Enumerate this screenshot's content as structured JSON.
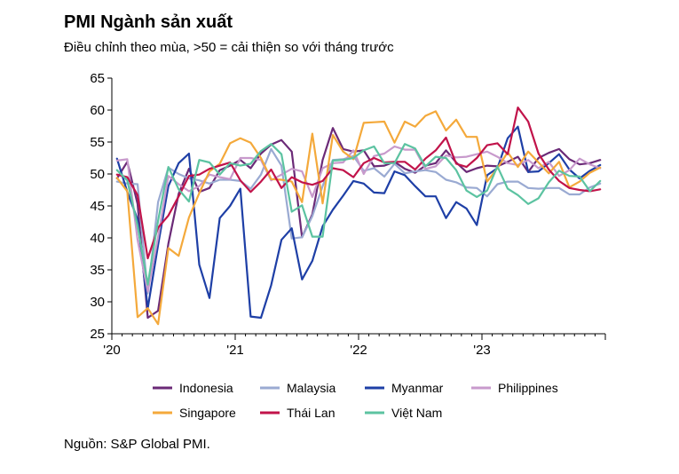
{
  "title": "PMI Ngành sản xuất",
  "subtitle": "Điều chỉnh theo mùa, >50 = cải thiện so với tháng trước",
  "source": "Nguồn: S&P Global PMI.",
  "chart_data": {
    "type": "line",
    "title": "PMI Ngành sản xuất",
    "subtitle": "Điều chỉnh theo mùa, >50 = cải thiện so với tháng trước",
    "ylim": [
      25,
      65
    ],
    "yticks": [
      25,
      30,
      35,
      40,
      45,
      50,
      55,
      60,
      65
    ],
    "xticks": [
      {
        "label": "'20",
        "month": "2020-01"
      },
      {
        "label": "'21",
        "month": "2021-01"
      },
      {
        "label": "'22",
        "month": "2022-01"
      },
      {
        "label": "'23",
        "month": "2023-01"
      }
    ],
    "x": [
      "2020-01",
      "2020-02",
      "2020-03",
      "2020-04",
      "2020-05",
      "2020-06",
      "2020-07",
      "2020-08",
      "2020-09",
      "2020-10",
      "2020-11",
      "2020-12",
      "2021-01",
      "2021-02",
      "2021-03",
      "2021-04",
      "2021-05",
      "2021-06",
      "2021-07",
      "2021-08",
      "2021-09",
      "2021-10",
      "2021-11",
      "2021-12",
      "2022-01",
      "2022-02",
      "2022-03",
      "2022-04",
      "2022-05",
      "2022-06",
      "2022-07",
      "2022-08",
      "2022-09",
      "2022-10",
      "2022-11",
      "2022-12",
      "2023-01",
      "2023-02",
      "2023-03",
      "2023-04",
      "2023-05",
      "2023-06",
      "2023-07",
      "2023-08",
      "2023-09",
      "2023-10",
      "2023-11",
      "2023-12"
    ],
    "grid": false,
    "legend_position": "bottom",
    "series": [
      {
        "name": "Indonesia",
        "color": "#6b2a77",
        "values": [
          49.3,
          51.9,
          45.3,
          27.5,
          28.6,
          39.1,
          46.9,
          50.8,
          47.2,
          47.8,
          50.6,
          51.3,
          52.2,
          50.9,
          53.2,
          54.6,
          55.3,
          53.5,
          40.1,
          43.7,
          52.2,
          57.2,
          53.9,
          53.5,
          53.7,
          51.2,
          51.3,
          51.9,
          50.8,
          50.2,
          51.3,
          51.7,
          53.7,
          51.8,
          50.3,
          50.9,
          51.3,
          51.2,
          51.9,
          52.7,
          50.3,
          52.5,
          53.3,
          53.9,
          52.3,
          51.5,
          51.7,
          52.2
        ]
      },
      {
        "name": "Malaysia",
        "color": "#9aaad2",
        "values": [
          48.8,
          48.5,
          48.4,
          31.3,
          45.6,
          51.0,
          50.0,
          49.3,
          49.0,
          48.5,
          49.1,
          49.1,
          48.9,
          47.7,
          49.9,
          53.9,
          51.3,
          39.9,
          40.1,
          43.4,
          48.1,
          52.2,
          52.3,
          52.8,
          50.5,
          50.9,
          49.6,
          51.6,
          50.1,
          50.4,
          50.6,
          50.3,
          49.1,
          48.7,
          47.9,
          47.8,
          46.5,
          48.4,
          48.8,
          48.8,
          47.8,
          47.7,
          47.8,
          47.8,
          46.8,
          46.8,
          47.9,
          48.5
        ]
      },
      {
        "name": "Myanmar",
        "color": "#1e3fa6",
        "values": [
          52.4,
          47.2,
          42.9,
          29.0,
          38.9,
          48.1,
          51.7,
          53.2,
          35.8,
          30.6,
          43.1,
          45.0,
          47.7,
          27.7,
          27.5,
          32.6,
          39.7,
          41.5,
          33.5,
          36.4,
          41.8,
          44.4,
          46.6,
          48.9,
          48.5,
          47.1,
          47.0,
          50.4,
          49.8,
          48.1,
          46.5,
          46.5,
          43.1,
          45.6,
          44.6,
          42.0,
          49.8,
          50.9,
          55.6,
          57.4,
          50.3,
          50.4,
          51.7,
          53.1,
          50.7,
          49.3,
          50.5,
          51.4
        ]
      },
      {
        "name": "Philippines",
        "color": "#c89acc",
        "values": [
          52.1,
          52.3,
          39.7,
          31.6,
          40.1,
          49.7,
          48.4,
          47.3,
          48.1,
          49.9,
          49.5,
          49.2,
          52.5,
          52.5,
          52.2,
          49.0,
          49.9,
          50.8,
          50.4,
          46.4,
          50.9,
          51.7,
          51.8,
          53.7,
          50.0,
          52.8,
          53.2,
          54.3,
          53.8,
          53.8,
          50.8,
          51.2,
          52.9,
          52.6,
          52.7,
          53.1,
          53.5,
          52.7,
          51.7,
          51.4,
          52.2,
          50.9,
          51.9,
          49.7,
          50.6,
          52.4,
          51.5,
          50.9
        ]
      },
      {
        "name": "Singapore",
        "color": "#f4a93b",
        "values": [
          49.4,
          47.3,
          27.6,
          29.0,
          26.5,
          38.4,
          37.2,
          43.2,
          47.0,
          50.4,
          51.6,
          54.8,
          55.6,
          54.9,
          52.5,
          49.2,
          49.1,
          48.8,
          45.6,
          56.3,
          45.4,
          56.1,
          53.5,
          52.3,
          58.0,
          58.1,
          58.2,
          54.9,
          58.2,
          57.4,
          59.1,
          59.8,
          56.8,
          58.5,
          55.8,
          55.8,
          48.8,
          50.9,
          53.4,
          51.1,
          53.5,
          51.8,
          50.1,
          51.9,
          47.9,
          48.8,
          50.2,
          51.0
        ]
      },
      {
        "name": "Thái Lan",
        "color": "#c1134a",
        "values": [
          49.9,
          49.5,
          46.7,
          36.8,
          41.6,
          43.5,
          46.5,
          49.7,
          49.9,
          50.8,
          51.3,
          51.8,
          49.0,
          47.2,
          48.8,
          50.7,
          47.8,
          49.5,
          48.7,
          48.3,
          48.9,
          50.9,
          50.6,
          49.5,
          51.7,
          52.5,
          51.8,
          51.9,
          51.9,
          50.7,
          52.4,
          53.7,
          55.7,
          51.6,
          51.1,
          52.5,
          54.5,
          54.8,
          53.1,
          60.4,
          58.2,
          53.2,
          50.7,
          48.9,
          47.8,
          47.5,
          47.3,
          47.6
        ]
      },
      {
        "name": "Việt Nam",
        "color": "#5cc3a1",
        "values": [
          50.6,
          49.0,
          41.9,
          32.7,
          42.7,
          51.1,
          47.6,
          45.7,
          52.2,
          51.8,
          49.9,
          51.7,
          51.3,
          51.6,
          53.6,
          54.7,
          53.1,
          44.1,
          45.1,
          40.2,
          40.2,
          52.1,
          52.2,
          52.5,
          53.7,
          54.3,
          51.7,
          51.7,
          54.7,
          54.0,
          51.2,
          52.7,
          52.5,
          50.6,
          47.4,
          46.4,
          47.4,
          51.2,
          47.7,
          46.7,
          45.3,
          46.2,
          48.7,
          50.5,
          49.7,
          49.6,
          47.3,
          48.9
        ]
      }
    ]
  }
}
